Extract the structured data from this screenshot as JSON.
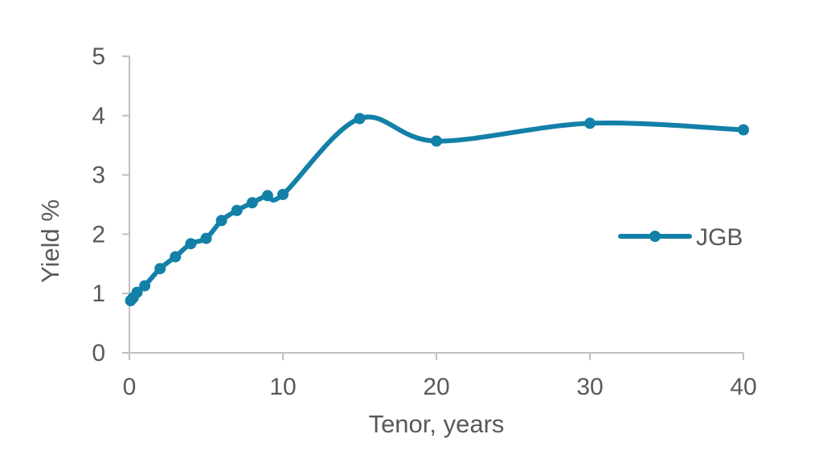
{
  "chart_data": {
    "type": "line",
    "title": "",
    "xlabel": "Tenor, years",
    "ylabel": "Yield %",
    "xlim": [
      0,
      40
    ],
    "ylim": [
      0,
      5
    ],
    "x_ticks": [
      0,
      10,
      20,
      30,
      40
    ],
    "y_ticks": [
      0,
      1,
      2,
      3,
      4,
      5
    ],
    "grid": false,
    "smooth": true,
    "legend": {
      "position": "right",
      "show": true
    },
    "series": [
      {
        "name": "JGB",
        "color": "#1380A8",
        "marker": "circle",
        "x": [
          0.08,
          0.25,
          0.5,
          1,
          2,
          3,
          4,
          5,
          6,
          7,
          8,
          9,
          10,
          15,
          20,
          30,
          40
        ],
        "y": [
          0.88,
          0.93,
          1.02,
          1.13,
          1.42,
          1.62,
          1.84,
          1.93,
          2.23,
          2.4,
          2.53,
          2.65,
          2.67,
          3.95,
          3.57,
          3.87,
          3.76
        ]
      }
    ]
  }
}
